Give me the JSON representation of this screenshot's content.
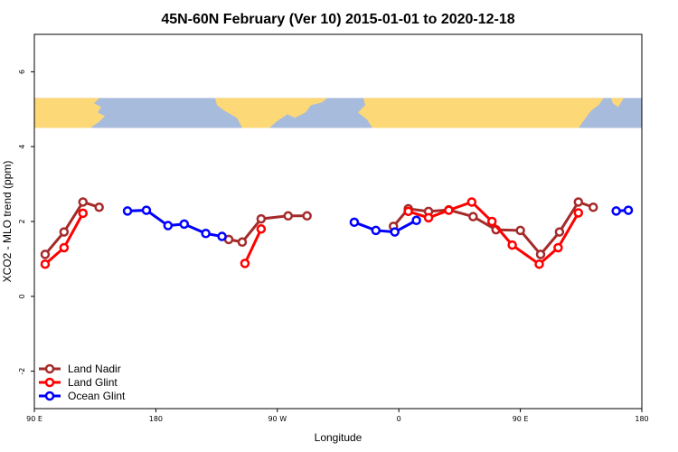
{
  "chart_data": {
    "type": "line",
    "title": "45N-60N February (Ver 10)   2015-01-01 to 2020-12-18",
    "xlabel": "Longitude",
    "ylabel": "XCO2 - MLO trend (ppm)",
    "xlim": [
      90,
      540
    ],
    "ylim": [
      -3,
      7
    ],
    "xticks": [
      {
        "value": 90,
        "label": "90 E"
      },
      {
        "value": 180,
        "label": "180"
      },
      {
        "value": 270,
        "label": "90 W"
      },
      {
        "value": 360,
        "label": "0"
      },
      {
        "value": 450,
        "label": "90 E"
      },
      {
        "value": 540,
        "label": "180"
      }
    ],
    "yticks": [
      {
        "value": -2,
        "label": "-2"
      },
      {
        "value": 0,
        "label": "0"
      },
      {
        "value": 2,
        "label": "2"
      },
      {
        "value": 4,
        "label": "4"
      },
      {
        "value": 6,
        "label": "6"
      }
    ],
    "map_band": {
      "y_range": [
        4.5,
        5.3
      ],
      "ocean_color": "#a7bbdc",
      "land_color": "#fdd876"
    },
    "legend_position": "bottom-left",
    "series": [
      {
        "name": "Land Nadir",
        "color": "#a52a2a",
        "segments": [
          [
            [
              98,
              1.12
            ],
            [
              112,
              1.72
            ],
            [
              126,
              2.52
            ],
            [
              138,
              2.38
            ]
          ],
          [
            [
              234,
              1.52
            ],
            [
              244,
              1.45
            ],
            [
              258,
              2.07
            ],
            [
              278,
              2.15
            ],
            [
              292,
              2.15
            ]
          ],
          [
            [
              356,
              1.87
            ],
            [
              367,
              2.34
            ],
            [
              382,
              2.27
            ],
            [
              397,
              2.31
            ],
            [
              415,
              2.13
            ],
            [
              432,
              1.78
            ],
            [
              450,
              1.76
            ],
            [
              465,
              1.12
            ],
            [
              479,
              1.72
            ],
            [
              493,
              2.52
            ],
            [
              504,
              2.38
            ]
          ]
        ]
      },
      {
        "name": "Land Glint",
        "color": "#ff0000",
        "segments": [
          [
            [
              98,
              0.86
            ],
            [
              112,
              1.3
            ],
            [
              126,
              2.22
            ]
          ],
          [
            [
              246,
              0.88
            ],
            [
              258,
              1.8
            ]
          ],
          [
            [
              367,
              2.27
            ],
            [
              382,
              2.1
            ],
            [
              397,
              2.3
            ],
            [
              414,
              2.52
            ],
            [
              429,
              2.0
            ],
            [
              444,
              1.37
            ],
            [
              464,
              0.86
            ],
            [
              478,
              1.3
            ],
            [
              493,
              2.23
            ]
          ]
        ]
      },
      {
        "name": "Ocean Glint",
        "color": "#0000ff",
        "segments": [
          [
            [
              159,
              2.28
            ],
            [
              173,
              2.3
            ],
            [
              189,
              1.89
            ],
            [
              201,
              1.93
            ],
            [
              217,
              1.68
            ],
            [
              229,
              1.6
            ]
          ],
          [
            [
              327,
              1.98
            ],
            [
              343,
              1.76
            ],
            [
              357,
              1.72
            ],
            [
              373,
              2.03
            ]
          ],
          [
            [
              521,
              2.28
            ],
            [
              530,
              2.3
            ]
          ]
        ]
      }
    ]
  }
}
